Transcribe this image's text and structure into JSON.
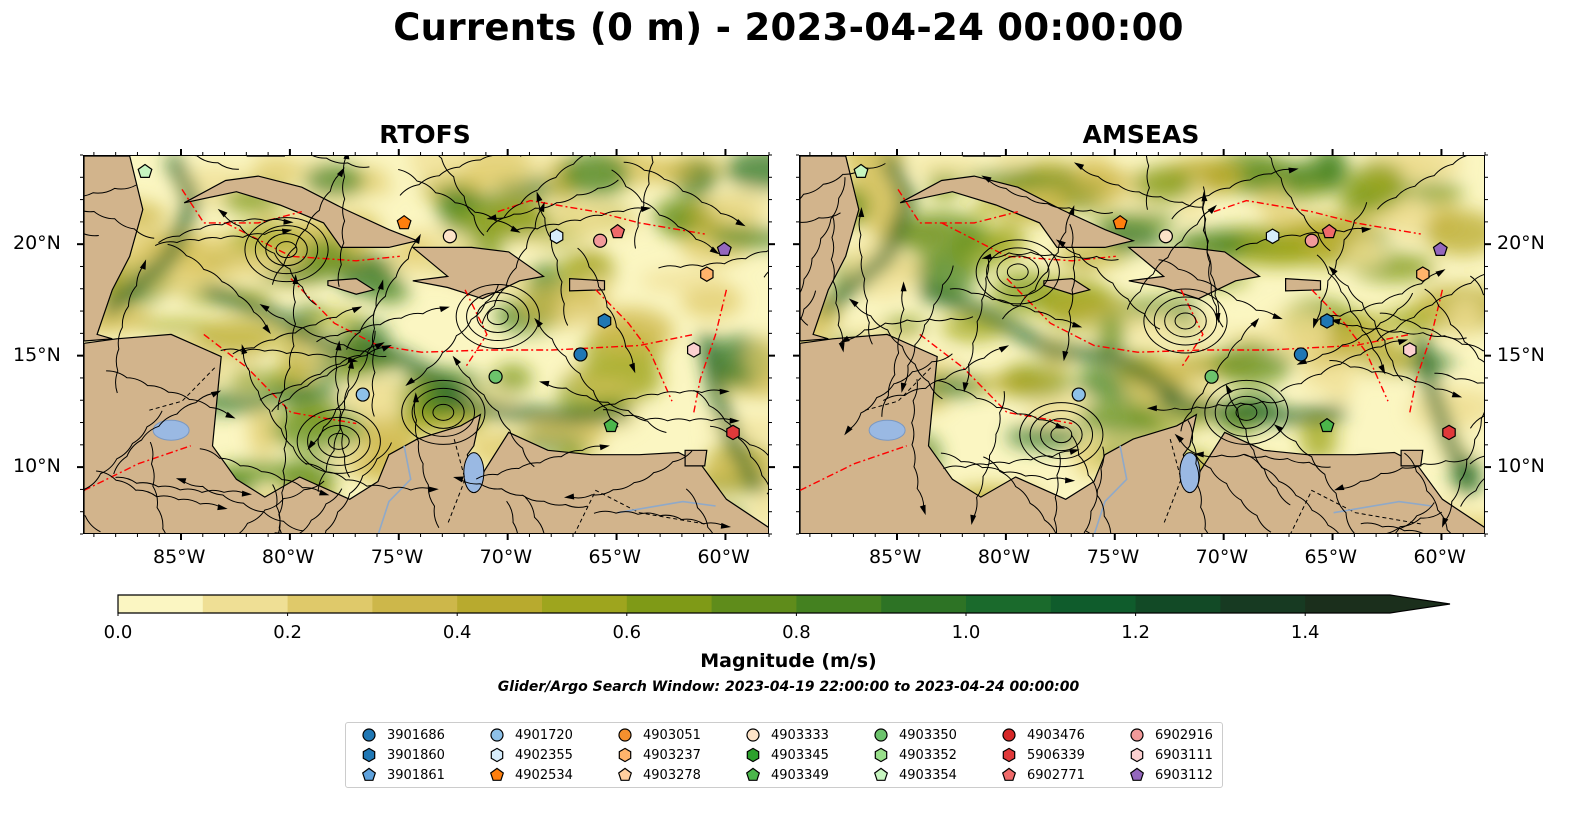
{
  "title": "Currents (0 m) - 2023-04-24 00:00:00",
  "panels": [
    {
      "title": "RTOFS"
    },
    {
      "title": "AMSEAS"
    }
  ],
  "lon_labels": [
    "85°W",
    "80°W",
    "75°W",
    "70°W",
    "65°W",
    "60°W"
  ],
  "lat_labels": [
    "20°N",
    "15°N",
    "10°N"
  ],
  "colorbar": {
    "label": "Magnitude (m/s)",
    "ticks": [
      "0.0",
      "0.2",
      "0.4",
      "0.6",
      "0.8",
      "1.0",
      "1.2",
      "1.4"
    ],
    "min": 0.0,
    "max": 1.5,
    "step": 0.1,
    "colors": [
      "#fbf6c2",
      "#efdf95",
      "#dfc96a",
      "#cdb74a",
      "#b8aa2e",
      "#9ea51e",
      "#7f9a17",
      "#5f8c1b",
      "#448120",
      "#2d7325",
      "#1a6a2c",
      "#0f5c2c",
      "#124a26",
      "#173a22",
      "#1b2f1c"
    ]
  },
  "search_window": "Glider/Argo Search Window: 2023-04-19 22:00:00 to 2023-04-24 00:00:00",
  "legend": [
    {
      "id": "3901686",
      "color": "#1f77b4",
      "shape": "circle"
    },
    {
      "id": "3901860",
      "color": "#1f77b4",
      "shape": "hexagon"
    },
    {
      "id": "3901861",
      "color": "#5fa2dd",
      "shape": "pentagon"
    },
    {
      "id": "4901720",
      "color": "#8ec1e8",
      "shape": "circle"
    },
    {
      "id": "4902355",
      "color": "#d6ecfb",
      "shape": "hexagon"
    },
    {
      "id": "4902534",
      "color": "#ff7f0e",
      "shape": "pentagon"
    },
    {
      "id": "4903051",
      "color": "#f5902e",
      "shape": "circle"
    },
    {
      "id": "4903237",
      "color": "#ffb36b",
      "shape": "hexagon"
    },
    {
      "id": "4903278",
      "color": "#ffcf9e",
      "shape": "pentagon"
    },
    {
      "id": "4903333",
      "color": "#fde3c8",
      "shape": "circle"
    },
    {
      "id": "4903345",
      "color": "#2ca02c",
      "shape": "hexagon"
    },
    {
      "id": "4903349",
      "color": "#4bb64b",
      "shape": "pentagon"
    },
    {
      "id": "4903350",
      "color": "#6cc36c",
      "shape": "circle"
    },
    {
      "id": "4903352",
      "color": "#98df8a",
      "shape": "hexagon"
    },
    {
      "id": "4903354",
      "color": "#c7f5c0",
      "shape": "pentagon"
    },
    {
      "id": "4903476",
      "color": "#d62728",
      "shape": "circle"
    },
    {
      "id": "5906339",
      "color": "#e0393a",
      "shape": "hexagon"
    },
    {
      "id": "6902771",
      "color": "#ef6a6a",
      "shape": "pentagon"
    },
    {
      "id": "6902916",
      "color": "#f29a9a",
      "shape": "circle"
    },
    {
      "id": "6903111",
      "color": "#fbd0d0",
      "shape": "hexagon"
    },
    {
      "id": "6903112",
      "color": "#9467bd",
      "shape": "pentagon"
    }
  ],
  "floats_rtofs": [
    {
      "id": "4903354",
      "lon": -86.7,
      "lat": 23.3
    },
    {
      "id": "4902534",
      "lon": -74.8,
      "lat": 21.0
    },
    {
      "id": "4903333",
      "lon": -72.7,
      "lat": 20.4
    },
    {
      "id": "4902355",
      "lon": -67.8,
      "lat": 20.4
    },
    {
      "id": "6902916",
      "lon": -65.8,
      "lat": 20.2
    },
    {
      "id": "6902771",
      "lon": -65.0,
      "lat": 20.6
    },
    {
      "id": "6903112",
      "lon": -60.1,
      "lat": 19.8
    },
    {
      "id": "4903237",
      "lon": -60.9,
      "lat": 18.7
    },
    {
      "id": "3901860",
      "lon": -65.6,
      "lat": 16.6
    },
    {
      "id": "3901686",
      "lon": -66.7,
      "lat": 15.1
    },
    {
      "id": "6903111",
      "lon": -61.5,
      "lat": 15.3
    },
    {
      "id": "4903350",
      "lon": -70.6,
      "lat": 14.1
    },
    {
      "id": "4901720",
      "lon": -76.7,
      "lat": 13.3
    },
    {
      "id": "4903349",
      "lon": -65.3,
      "lat": 11.9
    },
    {
      "id": "5906339",
      "lon": -59.7,
      "lat": 11.6
    }
  ],
  "floats_amseas": [
    {
      "id": "4903354",
      "lon": -86.7,
      "lat": 23.3
    },
    {
      "id": "4902534",
      "lon": -74.8,
      "lat": 21.0
    },
    {
      "id": "4903333",
      "lon": -72.7,
      "lat": 20.4
    },
    {
      "id": "4902355",
      "lon": -67.8,
      "lat": 20.4
    },
    {
      "id": "6902916",
      "lon": -66.0,
      "lat": 20.2
    },
    {
      "id": "6902771",
      "lon": -65.2,
      "lat": 20.6
    },
    {
      "id": "6903112",
      "lon": -60.1,
      "lat": 19.8
    },
    {
      "id": "4903237",
      "lon": -60.9,
      "lat": 18.7
    },
    {
      "id": "3901860",
      "lon": -65.3,
      "lat": 16.6
    },
    {
      "id": "3901686",
      "lon": -66.5,
      "lat": 15.1
    },
    {
      "id": "6903111",
      "lon": -61.5,
      "lat": 15.3
    },
    {
      "id": "4903350",
      "lon": -70.6,
      "lat": 14.1
    },
    {
      "id": "4901720",
      "lon": -76.7,
      "lat": 13.3
    },
    {
      "id": "4903349",
      "lon": -65.3,
      "lat": 11.9
    },
    {
      "id": "5906339",
      "lon": -59.7,
      "lat": 11.6
    }
  ],
  "map_extent": {
    "lon_min": -89.5,
    "lon_max": -58.0,
    "lat_min": 7.0,
    "lat_max": 24.0
  },
  "colors": {
    "land": "#d2b48c",
    "ocean_low": "#f4eab1",
    "pacific": "#9ab9e3",
    "eez_line": "#ff0000"
  }
}
